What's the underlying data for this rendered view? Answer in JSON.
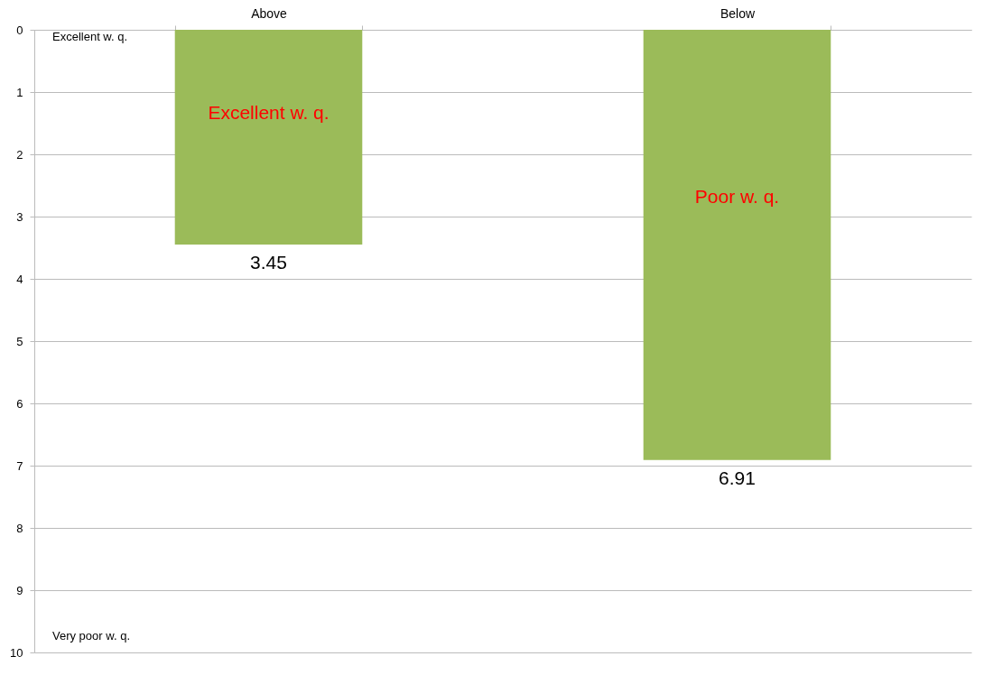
{
  "chart_data": {
    "type": "bar",
    "categories": [
      "Above",
      "Below"
    ],
    "values": [
      3.45,
      6.91
    ],
    "color": "#9bbb59",
    "ylim": [
      10,
      0
    ],
    "yticks": [
      0,
      1,
      2,
      3,
      4,
      5,
      6,
      7,
      8,
      9,
      10
    ],
    "grid": "y",
    "data_labels": true,
    "annotations": [
      "Excellent w. q.",
      "Very poor w. q.",
      "Excellent w. q.",
      "Poor w. q."
    ]
  }
}
